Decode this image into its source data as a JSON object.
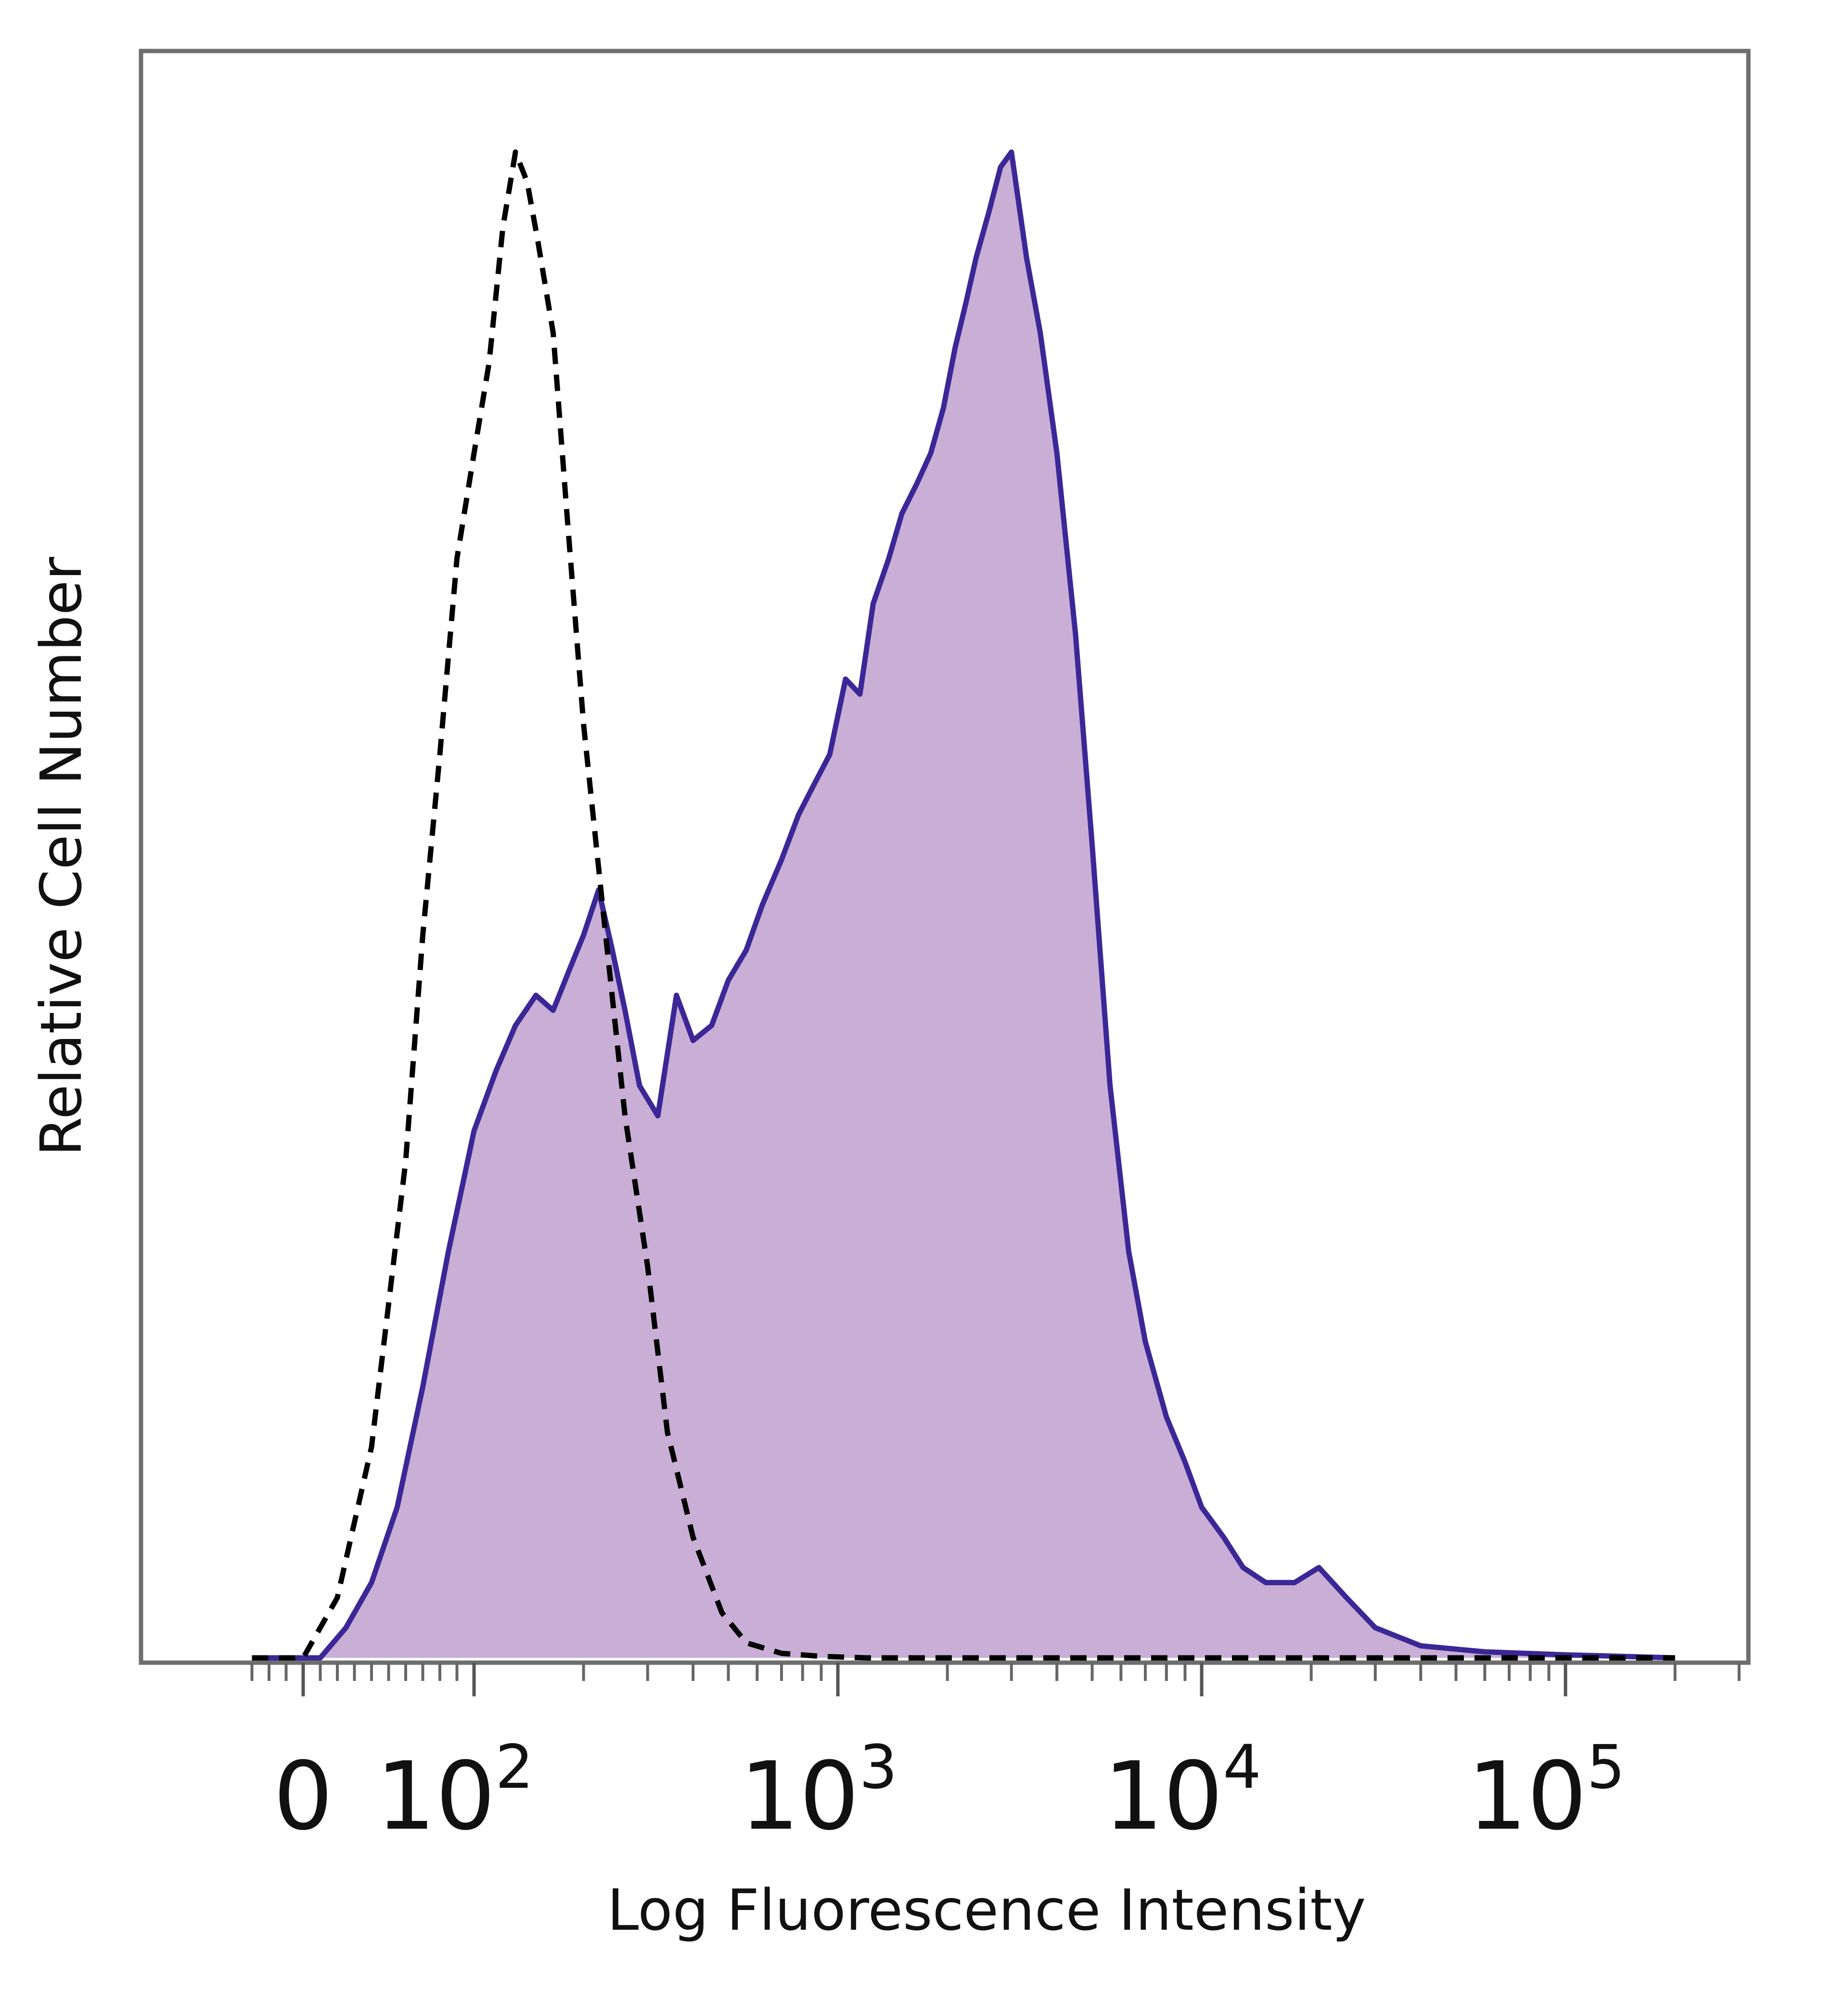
{
  "chart_data": {
    "type": "area",
    "title": "",
    "xlabel": "Log Fluorescence Intensity",
    "ylabel": "Relative Cell Number",
    "x_scale": "biexponential (log)",
    "xlim": [
      -30,
      200000
    ],
    "ylim": [
      0,
      1
    ],
    "grid": false,
    "legend": "none",
    "x_ticks": [
      {
        "value": 0,
        "base": "0",
        "exp": ""
      },
      {
        "value": 100,
        "base": "10",
        "exp": "2"
      },
      {
        "value": 1000,
        "base": "10",
        "exp": "3"
      },
      {
        "value": 10000,
        "base": "10",
        "exp": "4"
      },
      {
        "value": 100000,
        "base": "10",
        "exp": "5"
      }
    ],
    "series": [
      {
        "style": "filled",
        "color": "#3b2796",
        "fill": "#c9aed6",
        "x": [
          -30,
          10,
          25,
          40,
          55,
          70,
          85,
          100,
          115,
          130,
          148,
          165,
          185,
          200,
          220,
          240,
          260,
          285,
          320,
          360,
          400,
          450,
          500,
          560,
          620,
          700,
          780,
          860,
          950,
          1050,
          1150,
          1250,
          1380,
          1500,
          1650,
          1800,
          1950,
          2100,
          2250,
          2400,
          2600,
          2800,
          3000,
          3300,
          3600,
          4000,
          4500,
          5000,
          5600,
          6300,
          7000,
          8000,
          9000,
          10000,
          11500,
          13000,
          15000,
          18000,
          21000,
          25000,
          30000,
          40000,
          60000,
          100000,
          200000
        ],
        "y": [
          0,
          0,
          0.02,
          0.05,
          0.1,
          0.18,
          0.27,
          0.35,
          0.39,
          0.42,
          0.44,
          0.43,
          0.46,
          0.48,
          0.51,
          0.47,
          0.43,
          0.38,
          0.36,
          0.44,
          0.41,
          0.42,
          0.45,
          0.47,
          0.5,
          0.53,
          0.56,
          0.58,
          0.6,
          0.65,
          0.64,
          0.7,
          0.73,
          0.76,
          0.78,
          0.8,
          0.83,
          0.87,
          0.9,
          0.93,
          0.96,
          0.99,
          1.0,
          0.93,
          0.88,
          0.8,
          0.68,
          0.54,
          0.38,
          0.27,
          0.21,
          0.16,
          0.13,
          0.1,
          0.08,
          0.06,
          0.05,
          0.05,
          0.06,
          0.04,
          0.02,
          0.008,
          0.004,
          0.002,
          0
        ]
      },
      {
        "style": "dashed",
        "color": "#000000",
        "x": [
          -30,
          0,
          20,
          40,
          60,
          70,
          80,
          90,
          100,
          110,
          120,
          130,
          140,
          150,
          165,
          180,
          200,
          230,
          260,
          300,
          340,
          400,
          480,
          560,
          700,
          900,
          1200,
          2000,
          5000,
          20000,
          200000
        ],
        "y": [
          0,
          0,
          0.04,
          0.14,
          0.33,
          0.48,
          0.6,
          0.73,
          0.8,
          0.86,
          0.95,
          1.0,
          0.98,
          0.94,
          0.88,
          0.76,
          0.62,
          0.48,
          0.36,
          0.26,
          0.15,
          0.08,
          0.03,
          0.01,
          0.003,
          0.001,
          0,
          0,
          0,
          0,
          0
        ]
      }
    ]
  }
}
